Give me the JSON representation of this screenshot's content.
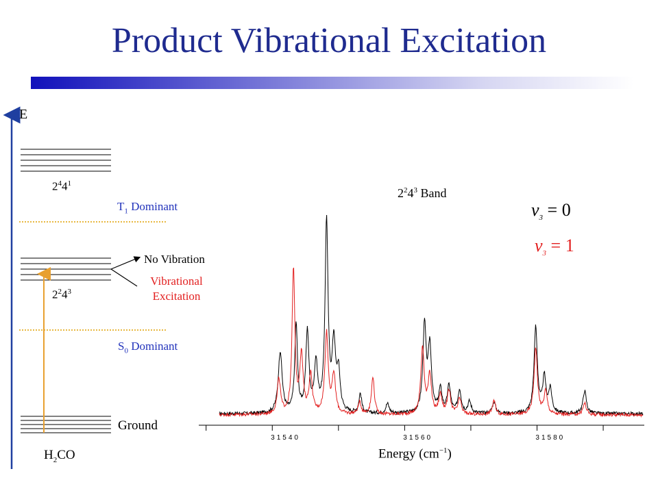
{
  "title": "Product Vibrational Excitation",
  "energy_axis": {
    "label": "E"
  },
  "levels": {
    "upper_band": {
      "base": "2",
      "sup1": "4",
      "mid": "4",
      "sup2": "1"
    },
    "middle_band": {
      "base": "2",
      "sup1": "2",
      "mid": "4",
      "sup2": "3"
    },
    "ground": "Ground"
  },
  "regions": {
    "t1": {
      "base": "T",
      "sub": "1",
      "rest": " Dominant"
    },
    "s0": {
      "base": "S",
      "sub": "0",
      "rest": " Dominant"
    }
  },
  "annotations": {
    "no_vibration": "No Vibration",
    "vibrational_excitation_1": "Vibrational",
    "vibrational_excitation_2": "Excitation"
  },
  "molecule": {
    "base": "H",
    "sub": "2",
    "rest": "CO"
  },
  "colors": {
    "title": "#1f2b8f",
    "blue_text": "#2233bb",
    "red": "#e21f1f",
    "arrow_blue": "#1f3fa0",
    "excitation_arrow": "#e8a030",
    "dotted": "#e0a000"
  },
  "chart_data": {
    "type": "line",
    "title": {
      "base": "2",
      "sup1": "2",
      "mid": "4",
      "sup2": "3",
      "rest": " Band"
    },
    "xlabel": {
      "base": "Energy (cm",
      "sup": "−1",
      "rest": ")"
    },
    "xlim": [
      31530,
      31594
    ],
    "ylim": [
      0,
      1
    ],
    "x_ticks": [
      31540,
      31560,
      31580
    ],
    "x_tick_labels": [
      "31540",
      "31560",
      "31580"
    ],
    "legend": [
      {
        "text_base": "v",
        "text_sub": "3",
        "text_rest": " = 0",
        "color": "#000000"
      },
      {
        "text_base": "v",
        "text_sub": "3",
        "text_rest": " = 1",
        "color": "#e21f1f"
      }
    ],
    "series": [
      {
        "color": "#000000",
        "baseline": 0.02,
        "peaks": [
          [
            31539.2,
            0.32,
            0.35
          ],
          [
            31541.6,
            0.46,
            0.25
          ],
          [
            31543.3,
            0.42,
            0.28
          ],
          [
            31544.6,
            0.25,
            0.3
          ],
          [
            31546.2,
            1.0,
            0.27
          ],
          [
            31547.3,
            0.35,
            0.3
          ],
          [
            31548.0,
            0.2,
            0.3
          ],
          [
            31551.3,
            0.1,
            0.25
          ],
          [
            31555.4,
            0.05,
            0.3
          ],
          [
            31561.0,
            0.45,
            0.3
          ],
          [
            31561.8,
            0.34,
            0.3
          ],
          [
            31563.4,
            0.12,
            0.3
          ],
          [
            31564.7,
            0.14,
            0.3
          ],
          [
            31566.3,
            0.12,
            0.3
          ],
          [
            31567.8,
            0.06,
            0.3
          ],
          [
            31571.5,
            0.06,
            0.3
          ],
          [
            31577.8,
            0.45,
            0.3
          ],
          [
            31579.1,
            0.18,
            0.3
          ],
          [
            31580.0,
            0.12,
            0.3
          ],
          [
            31585.2,
            0.12,
            0.3
          ]
        ]
      },
      {
        "color": "#e21f1f",
        "baseline": 0.015,
        "peaks": [
          [
            31539.0,
            0.18,
            0.3
          ],
          [
            31541.2,
            0.75,
            0.25
          ],
          [
            31542.4,
            0.3,
            0.3
          ],
          [
            31543.8,
            0.2,
            0.3
          ],
          [
            31546.2,
            0.42,
            0.3
          ],
          [
            31547.3,
            0.2,
            0.3
          ],
          [
            31553.2,
            0.2,
            0.25
          ],
          [
            31551.2,
            0.06,
            0.3
          ],
          [
            31560.7,
            0.35,
            0.3
          ],
          [
            31561.8,
            0.2,
            0.3
          ],
          [
            31563.4,
            0.1,
            0.3
          ],
          [
            31564.7,
            0.12,
            0.3
          ],
          [
            31566.3,
            0.08,
            0.3
          ],
          [
            31571.5,
            0.07,
            0.3
          ],
          [
            31577.8,
            0.35,
            0.3
          ],
          [
            31579.3,
            0.12,
            0.3
          ],
          [
            31585.2,
            0.06,
            0.3
          ]
        ]
      }
    ]
  }
}
